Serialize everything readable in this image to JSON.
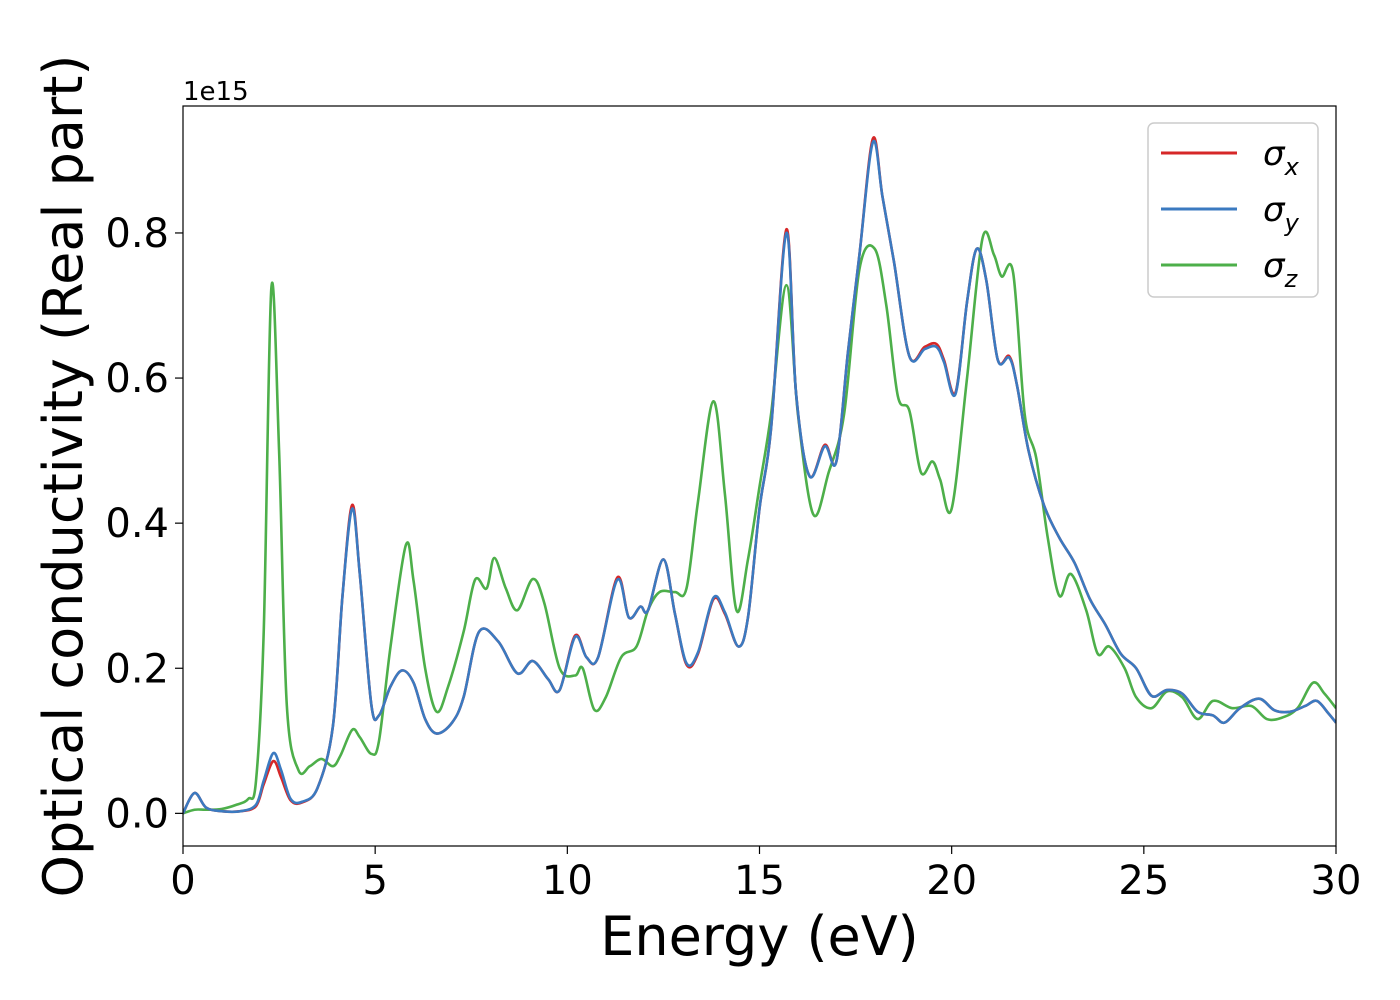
{
  "chart_data": {
    "type": "line",
    "xlabel": "Energy (eV)",
    "ylabel": "Optical conductivity (Real part)",
    "y_offset_label": "1e15",
    "xlim": [
      0,
      30
    ],
    "ylim": [
      -0.045,
      0.975
    ],
    "x_ticks": [
      0,
      5,
      10,
      15,
      20,
      25,
      30
    ],
    "x_tick_labels": [
      "0",
      "5",
      "10",
      "15",
      "20",
      "25",
      "30"
    ],
    "y_ticks": [
      0.0,
      0.2,
      0.4,
      0.6,
      0.8
    ],
    "y_tick_labels": [
      "0.0",
      "0.2",
      "0.4",
      "0.6",
      "0.8"
    ],
    "grid": false,
    "legend_position": "top-right",
    "series": [
      {
        "name": "σ",
        "subscript": "x",
        "color": "#d62728",
        "points": [
          [
            0,
            0
          ],
          [
            0.3,
            0.028
          ],
          [
            0.6,
            0.008
          ],
          [
            1,
            0.003
          ],
          [
            1.5,
            0.003
          ],
          [
            1.9,
            0.01
          ],
          [
            2.1,
            0.04
          ],
          [
            2.35,
            0.072
          ],
          [
            2.55,
            0.05
          ],
          [
            2.8,
            0.018
          ],
          [
            3.1,
            0.015
          ],
          [
            3.5,
            0.035
          ],
          [
            3.9,
            0.12
          ],
          [
            4.15,
            0.3
          ],
          [
            4.4,
            0.425
          ],
          [
            4.6,
            0.33
          ],
          [
            4.9,
            0.15
          ],
          [
            5.1,
            0.135
          ],
          [
            5.4,
            0.175
          ],
          [
            5.7,
            0.197
          ],
          [
            6.0,
            0.18
          ],
          [
            6.3,
            0.13
          ],
          [
            6.6,
            0.11
          ],
          [
            7.0,
            0.125
          ],
          [
            7.3,
            0.16
          ],
          [
            7.7,
            0.25
          ],
          [
            8.2,
            0.237
          ],
          [
            8.7,
            0.193
          ],
          [
            9.1,
            0.21
          ],
          [
            9.5,
            0.185
          ],
          [
            9.8,
            0.17
          ],
          [
            10.2,
            0.245
          ],
          [
            10.5,
            0.215
          ],
          [
            10.8,
            0.215
          ],
          [
            11.3,
            0.325
          ],
          [
            11.6,
            0.27
          ],
          [
            11.9,
            0.285
          ],
          [
            12.1,
            0.28
          ],
          [
            12.5,
            0.35
          ],
          [
            12.8,
            0.275
          ],
          [
            13.1,
            0.205
          ],
          [
            13.4,
            0.22
          ],
          [
            13.8,
            0.295
          ],
          [
            14.1,
            0.275
          ],
          [
            14.45,
            0.23
          ],
          [
            14.7,
            0.27
          ],
          [
            15.0,
            0.42
          ],
          [
            15.3,
            0.53
          ],
          [
            15.7,
            0.805
          ],
          [
            15.95,
            0.58
          ],
          [
            16.3,
            0.465
          ],
          [
            16.7,
            0.508
          ],
          [
            17.0,
            0.485
          ],
          [
            17.3,
            0.635
          ],
          [
            17.6,
            0.77
          ],
          [
            17.95,
            0.93
          ],
          [
            18.2,
            0.85
          ],
          [
            18.5,
            0.76
          ],
          [
            18.9,
            0.63
          ],
          [
            19.3,
            0.643
          ],
          [
            19.6,
            0.647
          ],
          [
            19.8,
            0.625
          ],
          [
            20.1,
            0.58
          ],
          [
            20.4,
            0.705
          ],
          [
            20.65,
            0.778
          ],
          [
            20.9,
            0.735
          ],
          [
            21.2,
            0.625
          ],
          [
            21.5,
            0.63
          ],
          [
            21.7,
            0.59
          ],
          [
            22.0,
            0.5
          ],
          [
            22.4,
            0.425
          ],
          [
            22.8,
            0.38
          ],
          [
            23.2,
            0.345
          ],
          [
            23.6,
            0.295
          ],
          [
            24.0,
            0.26
          ],
          [
            24.4,
            0.22
          ],
          [
            24.8,
            0.2
          ],
          [
            25.2,
            0.162
          ],
          [
            25.6,
            0.17
          ],
          [
            26.0,
            0.165
          ],
          [
            26.4,
            0.14
          ],
          [
            26.8,
            0.135
          ],
          [
            27.1,
            0.125
          ],
          [
            27.5,
            0.145
          ],
          [
            28.0,
            0.158
          ],
          [
            28.4,
            0.142
          ],
          [
            28.8,
            0.14
          ],
          [
            29.2,
            0.148
          ],
          [
            29.5,
            0.155
          ],
          [
            29.8,
            0.138
          ],
          [
            30.0,
            0.125
          ]
        ]
      },
      {
        "name": "σ",
        "subscript": "y",
        "color": "#3b7ac0",
        "points": [
          [
            0,
            0
          ],
          [
            0.3,
            0.028
          ],
          [
            0.6,
            0.008
          ],
          [
            1,
            0.003
          ],
          [
            1.5,
            0.003
          ],
          [
            1.9,
            0.012
          ],
          [
            2.1,
            0.045
          ],
          [
            2.35,
            0.083
          ],
          [
            2.55,
            0.06
          ],
          [
            2.8,
            0.02
          ],
          [
            3.1,
            0.016
          ],
          [
            3.5,
            0.035
          ],
          [
            3.9,
            0.12
          ],
          [
            4.15,
            0.3
          ],
          [
            4.4,
            0.42
          ],
          [
            4.6,
            0.33
          ],
          [
            4.9,
            0.15
          ],
          [
            5.1,
            0.135
          ],
          [
            5.4,
            0.175
          ],
          [
            5.7,
            0.197
          ],
          [
            6.0,
            0.18
          ],
          [
            6.3,
            0.13
          ],
          [
            6.6,
            0.11
          ],
          [
            7.0,
            0.125
          ],
          [
            7.3,
            0.16
          ],
          [
            7.7,
            0.25
          ],
          [
            8.2,
            0.237
          ],
          [
            8.7,
            0.193
          ],
          [
            9.1,
            0.21
          ],
          [
            9.5,
            0.185
          ],
          [
            9.8,
            0.17
          ],
          [
            10.2,
            0.243
          ],
          [
            10.5,
            0.215
          ],
          [
            10.8,
            0.215
          ],
          [
            11.3,
            0.322
          ],
          [
            11.6,
            0.27
          ],
          [
            11.9,
            0.285
          ],
          [
            12.1,
            0.28
          ],
          [
            12.5,
            0.35
          ],
          [
            12.8,
            0.275
          ],
          [
            13.1,
            0.207
          ],
          [
            13.4,
            0.222
          ],
          [
            13.8,
            0.297
          ],
          [
            14.1,
            0.277
          ],
          [
            14.45,
            0.23
          ],
          [
            14.7,
            0.27
          ],
          [
            15.0,
            0.42
          ],
          [
            15.3,
            0.53
          ],
          [
            15.7,
            0.8
          ],
          [
            15.95,
            0.58
          ],
          [
            16.3,
            0.465
          ],
          [
            16.7,
            0.506
          ],
          [
            17.0,
            0.485
          ],
          [
            17.3,
            0.635
          ],
          [
            17.6,
            0.77
          ],
          [
            17.95,
            0.925
          ],
          [
            18.2,
            0.85
          ],
          [
            18.5,
            0.76
          ],
          [
            18.9,
            0.63
          ],
          [
            19.3,
            0.64
          ],
          [
            19.6,
            0.643
          ],
          [
            19.8,
            0.622
          ],
          [
            20.1,
            0.578
          ],
          [
            20.4,
            0.705
          ],
          [
            20.65,
            0.778
          ],
          [
            20.9,
            0.735
          ],
          [
            21.2,
            0.625
          ],
          [
            21.5,
            0.628
          ],
          [
            21.7,
            0.59
          ],
          [
            22.0,
            0.5
          ],
          [
            22.4,
            0.425
          ],
          [
            22.8,
            0.38
          ],
          [
            23.2,
            0.345
          ],
          [
            23.6,
            0.295
          ],
          [
            24.0,
            0.26
          ],
          [
            24.4,
            0.22
          ],
          [
            24.8,
            0.2
          ],
          [
            25.2,
            0.162
          ],
          [
            25.6,
            0.17
          ],
          [
            26.0,
            0.165
          ],
          [
            26.4,
            0.14
          ],
          [
            26.8,
            0.135
          ],
          [
            27.1,
            0.125
          ],
          [
            27.5,
            0.145
          ],
          [
            28.0,
            0.158
          ],
          [
            28.4,
            0.142
          ],
          [
            28.8,
            0.14
          ],
          [
            29.2,
            0.148
          ],
          [
            29.5,
            0.155
          ],
          [
            29.8,
            0.138
          ],
          [
            30.0,
            0.125
          ]
        ]
      },
      {
        "name": "σ",
        "subscript": "z",
        "color": "#4daf4a",
        "points": [
          [
            0,
            0
          ],
          [
            0.3,
            0.005
          ],
          [
            0.6,
            0.005
          ],
          [
            1.0,
            0.006
          ],
          [
            1.4,
            0.012
          ],
          [
            1.7,
            0.02
          ],
          [
            1.9,
            0.045
          ],
          [
            2.1,
            0.25
          ],
          [
            2.3,
            0.725
          ],
          [
            2.5,
            0.5
          ],
          [
            2.7,
            0.15
          ],
          [
            3.0,
            0.06
          ],
          [
            3.3,
            0.065
          ],
          [
            3.6,
            0.075
          ],
          [
            3.9,
            0.065
          ],
          [
            4.1,
            0.08
          ],
          [
            4.4,
            0.115
          ],
          [
            4.6,
            0.105
          ],
          [
            4.9,
            0.082
          ],
          [
            5.1,
            0.1
          ],
          [
            5.4,
            0.23
          ],
          [
            5.8,
            0.37
          ],
          [
            6.0,
            0.32
          ],
          [
            6.3,
            0.2
          ],
          [
            6.6,
            0.14
          ],
          [
            6.9,
            0.175
          ],
          [
            7.3,
            0.25
          ],
          [
            7.6,
            0.322
          ],
          [
            7.9,
            0.31
          ],
          [
            8.1,
            0.352
          ],
          [
            8.4,
            0.31
          ],
          [
            8.7,
            0.28
          ],
          [
            9.1,
            0.323
          ],
          [
            9.4,
            0.29
          ],
          [
            9.8,
            0.2
          ],
          [
            10.2,
            0.19
          ],
          [
            10.4,
            0.2
          ],
          [
            10.7,
            0.143
          ],
          [
            11.0,
            0.16
          ],
          [
            11.4,
            0.215
          ],
          [
            11.8,
            0.23
          ],
          [
            12.1,
            0.28
          ],
          [
            12.4,
            0.305
          ],
          [
            12.8,
            0.305
          ],
          [
            13.1,
            0.31
          ],
          [
            13.4,
            0.43
          ],
          [
            13.8,
            0.568
          ],
          [
            14.1,
            0.44
          ],
          [
            14.4,
            0.28
          ],
          [
            14.7,
            0.35
          ],
          [
            15.0,
            0.45
          ],
          [
            15.3,
            0.55
          ],
          [
            15.7,
            0.728
          ],
          [
            16.0,
            0.55
          ],
          [
            16.4,
            0.412
          ],
          [
            16.8,
            0.47
          ],
          [
            17.2,
            0.55
          ],
          [
            17.6,
            0.75
          ],
          [
            18.0,
            0.778
          ],
          [
            18.3,
            0.7
          ],
          [
            18.6,
            0.575
          ],
          [
            18.9,
            0.555
          ],
          [
            19.2,
            0.47
          ],
          [
            19.5,
            0.485
          ],
          [
            19.7,
            0.46
          ],
          [
            20.0,
            0.42
          ],
          [
            20.4,
            0.6
          ],
          [
            20.8,
            0.792
          ],
          [
            21.1,
            0.77
          ],
          [
            21.3,
            0.74
          ],
          [
            21.6,
            0.745
          ],
          [
            21.9,
            0.55
          ],
          [
            22.2,
            0.49
          ],
          [
            22.5,
            0.38
          ],
          [
            22.8,
            0.3
          ],
          [
            23.1,
            0.33
          ],
          [
            23.5,
            0.28
          ],
          [
            23.8,
            0.22
          ],
          [
            24.1,
            0.23
          ],
          [
            24.5,
            0.2
          ],
          [
            24.8,
            0.16
          ],
          [
            25.2,
            0.145
          ],
          [
            25.6,
            0.168
          ],
          [
            26.0,
            0.16
          ],
          [
            26.4,
            0.13
          ],
          [
            26.8,
            0.155
          ],
          [
            27.3,
            0.145
          ],
          [
            27.8,
            0.148
          ],
          [
            28.2,
            0.13
          ],
          [
            28.6,
            0.132
          ],
          [
            29.0,
            0.145
          ],
          [
            29.4,
            0.18
          ],
          [
            29.7,
            0.165
          ],
          [
            30.0,
            0.145
          ]
        ]
      }
    ]
  }
}
